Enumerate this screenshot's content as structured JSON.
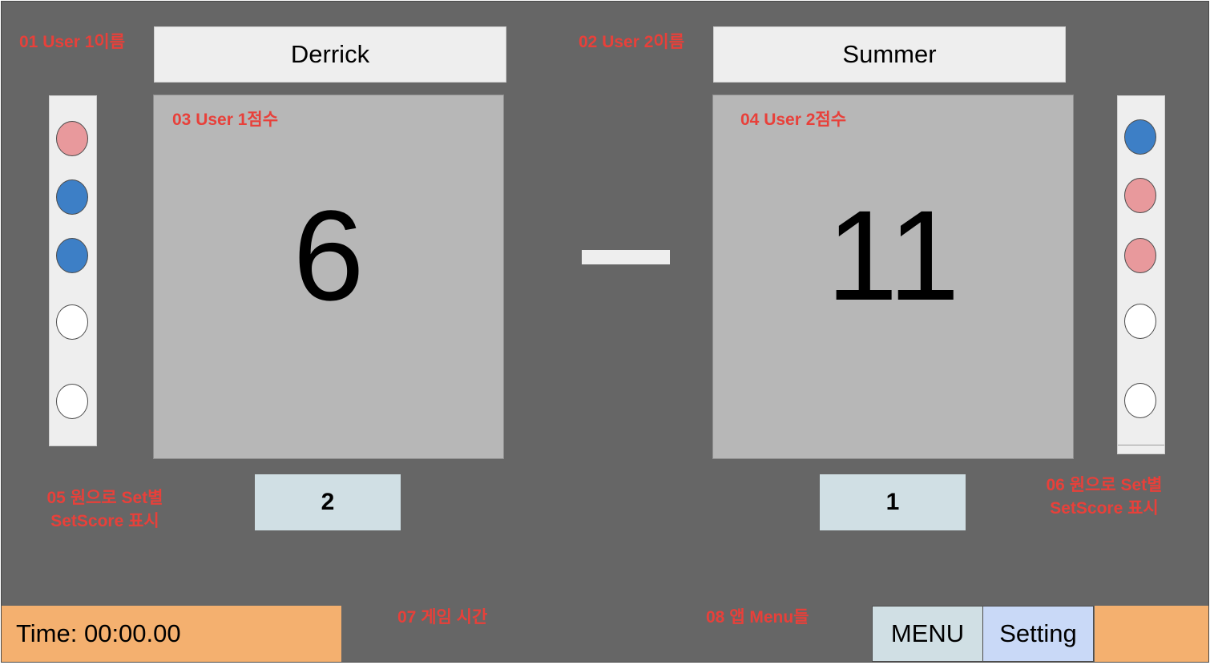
{
  "annotations": {
    "user1_name": "01 User 1이름",
    "user2_name": "02 User 2이름",
    "user1_score": "03 User 1점수",
    "user2_score": "04 User 2점수",
    "set_dots_left_line1": "05 원으로 Set별",
    "set_dots_left_line2": "SetScore 표시",
    "set_dots_right_line1": "06 원으로 Set별",
    "set_dots_right_line2": "SetScore 표시",
    "game_time": "07 게임 시간",
    "app_menus": "08 앱 Menu들"
  },
  "player1": {
    "name": "Derrick",
    "score": "6",
    "sets_won": "2",
    "set_dots": [
      "red",
      "blue",
      "blue",
      "white",
      "white"
    ]
  },
  "player2": {
    "name": "Summer",
    "score": "11",
    "sets_won": "1",
    "set_dots": [
      "blue",
      "red",
      "red",
      "white",
      "white"
    ]
  },
  "timer": {
    "text": "Time: 00:00.00"
  },
  "menu": {
    "menu_label": "MENU",
    "setting_label": "Setting"
  },
  "colors": {
    "background": "#666666",
    "annotation": "#e8403a",
    "dot_red": "#e8999c",
    "dot_blue": "#3d7fc6",
    "timebar": "#f4b06f"
  }
}
